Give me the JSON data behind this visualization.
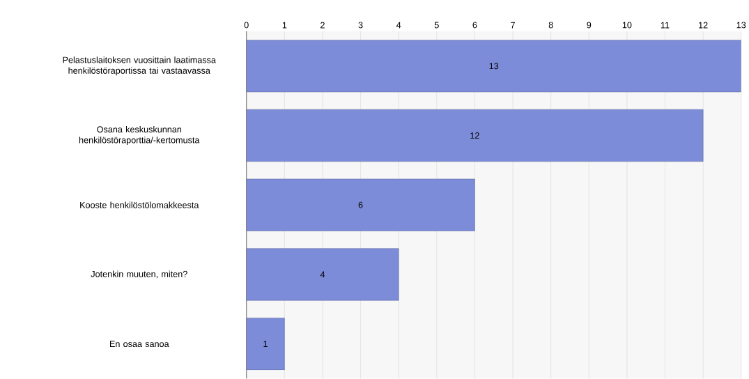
{
  "chart_data": {
    "type": "bar",
    "orientation": "horizontal",
    "categories": [
      "Pelastuslaitoksen vuosittain laatimassa henkilöstöraportissa tai vastaavassa",
      "Osana keskuskunnan henkilöstöraporttia/-kertomusta",
      "Kooste henkilöstölomakkeesta",
      "Jotenkin muuten, miten?",
      "En osaa sanoa"
    ],
    "values": [
      13,
      12,
      6,
      4,
      1
    ],
    "color": "#7d8cd8",
    "xlim": [
      0,
      13
    ],
    "xticks": [
      0,
      1,
      2,
      3,
      4,
      5,
      6,
      7,
      8,
      9,
      10,
      11,
      12,
      13
    ],
    "grid": "x",
    "data_labels": true
  }
}
